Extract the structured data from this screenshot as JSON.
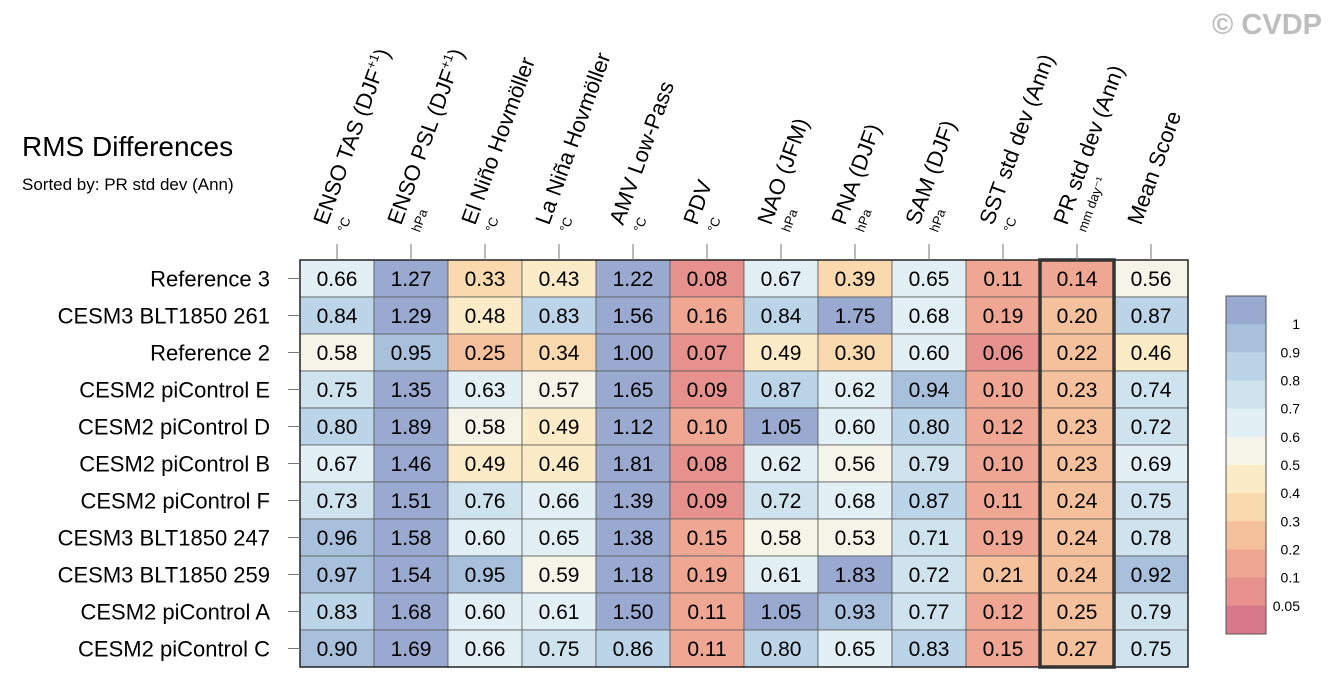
{
  "watermark": "© CVDP",
  "chart_data": {
    "type": "heatmap",
    "title": "RMS Differences",
    "subtitle": "Sorted by: PR std dev (Ann)",
    "columns": [
      {
        "name": "ENSO TAS (DJF",
        "sup": "+1",
        "close": ")",
        "unit": "°C"
      },
      {
        "name": "ENSO PSL (DJF",
        "sup": "+1",
        "close": ")",
        "unit": "hPa"
      },
      {
        "name": "El Niño Hovmöller",
        "sup": "",
        "close": "",
        "unit": "°C"
      },
      {
        "name": "La Niña Hovmöller",
        "sup": "",
        "close": "",
        "unit": "°C"
      },
      {
        "name": "AMV Low-Pass",
        "sup": "",
        "close": "",
        "unit": "°C"
      },
      {
        "name": "PDV",
        "sup": "",
        "close": "",
        "unit": "°C"
      },
      {
        "name": "NAO (JFM)",
        "sup": "",
        "close": "",
        "unit": "hPa"
      },
      {
        "name": "PNA (DJF)",
        "sup": "",
        "close": "",
        "unit": "hPa"
      },
      {
        "name": "SAM (DJF)",
        "sup": "",
        "close": "",
        "unit": "hPa"
      },
      {
        "name": "SST std dev (Ann)",
        "sup": "",
        "close": "",
        "unit": "°C"
      },
      {
        "name": "PR std dev (Ann)",
        "sup": "",
        "close": "",
        "unit": "mm day⁻¹"
      },
      {
        "name": "Mean Score",
        "sup": "",
        "close": "",
        "unit": ""
      }
    ],
    "highlighted_column": "PR std dev (Ann)",
    "rows": [
      "Reference 3",
      "CESM3 BLT1850 261",
      "Reference 2",
      "CESM2 piControl E",
      "CESM2 piControl D",
      "CESM2 piControl B",
      "CESM2 piControl F",
      "CESM3 BLT1850 247",
      "CESM3 BLT1850 259",
      "CESM2 piControl A",
      "CESM2 piControl C"
    ],
    "values": [
      [
        0.66,
        1.27,
        0.33,
        0.43,
        1.22,
        0.08,
        0.67,
        0.39,
        0.65,
        0.11,
        0.14,
        0.56
      ],
      [
        0.84,
        1.29,
        0.48,
        0.83,
        1.56,
        0.16,
        0.84,
        1.75,
        0.68,
        0.19,
        0.2,
        0.87
      ],
      [
        0.58,
        0.95,
        0.25,
        0.34,
        1.0,
        0.07,
        0.49,
        0.3,
        0.6,
        0.06,
        0.22,
        0.46
      ],
      [
        0.75,
        1.35,
        0.63,
        0.57,
        1.65,
        0.09,
        0.87,
        0.62,
        0.94,
        0.1,
        0.23,
        0.74
      ],
      [
        0.8,
        1.89,
        0.58,
        0.49,
        1.12,
        0.1,
        1.05,
        0.6,
        0.8,
        0.12,
        0.23,
        0.72
      ],
      [
        0.67,
        1.46,
        0.49,
        0.46,
        1.81,
        0.08,
        0.62,
        0.56,
        0.79,
        0.1,
        0.23,
        0.69
      ],
      [
        0.73,
        1.51,
        0.76,
        0.66,
        1.39,
        0.09,
        0.72,
        0.68,
        0.87,
        0.11,
        0.24,
        0.75
      ],
      [
        0.96,
        1.58,
        0.6,
        0.65,
        1.38,
        0.15,
        0.58,
        0.53,
        0.71,
        0.19,
        0.24,
        0.78
      ],
      [
        0.97,
        1.54,
        0.95,
        0.59,
        1.18,
        0.19,
        0.61,
        1.83,
        0.72,
        0.21,
        0.24,
        0.92
      ],
      [
        0.83,
        1.68,
        0.6,
        0.61,
        1.5,
        0.11,
        1.05,
        0.93,
        0.77,
        0.12,
        0.25,
        0.79
      ],
      [
        0.9,
        1.69,
        0.66,
        0.75,
        0.86,
        0.11,
        0.8,
        0.65,
        0.83,
        0.15,
        0.27,
        0.75
      ]
    ],
    "colorbar": {
      "ticks": [
        "1",
        "0.9",
        "0.8",
        "0.7",
        "0.6",
        "0.5",
        "0.4",
        "0.3",
        "0.2",
        "0.1",
        "0.05"
      ],
      "bins": [
        {
          "min": 1.0,
          "color": "#9aa9cf"
        },
        {
          "min": 0.9,
          "color": "#a9c0dd"
        },
        {
          "min": 0.8,
          "color": "#bcd4e8"
        },
        {
          "min": 0.7,
          "color": "#cfe3ef"
        },
        {
          "min": 0.6,
          "color": "#e2f0f5"
        },
        {
          "min": 0.5,
          "color": "#f5f4e8"
        },
        {
          "min": 0.4,
          "color": "#fbebc6"
        },
        {
          "min": 0.3,
          "color": "#f9d9ae"
        },
        {
          "min": 0.2,
          "color": "#f5c09c"
        },
        {
          "min": 0.1,
          "color": "#efa692"
        },
        {
          "min": 0.05,
          "color": "#e6918e"
        },
        {
          "min": 0.0,
          "color": "#d7798a"
        }
      ]
    }
  }
}
